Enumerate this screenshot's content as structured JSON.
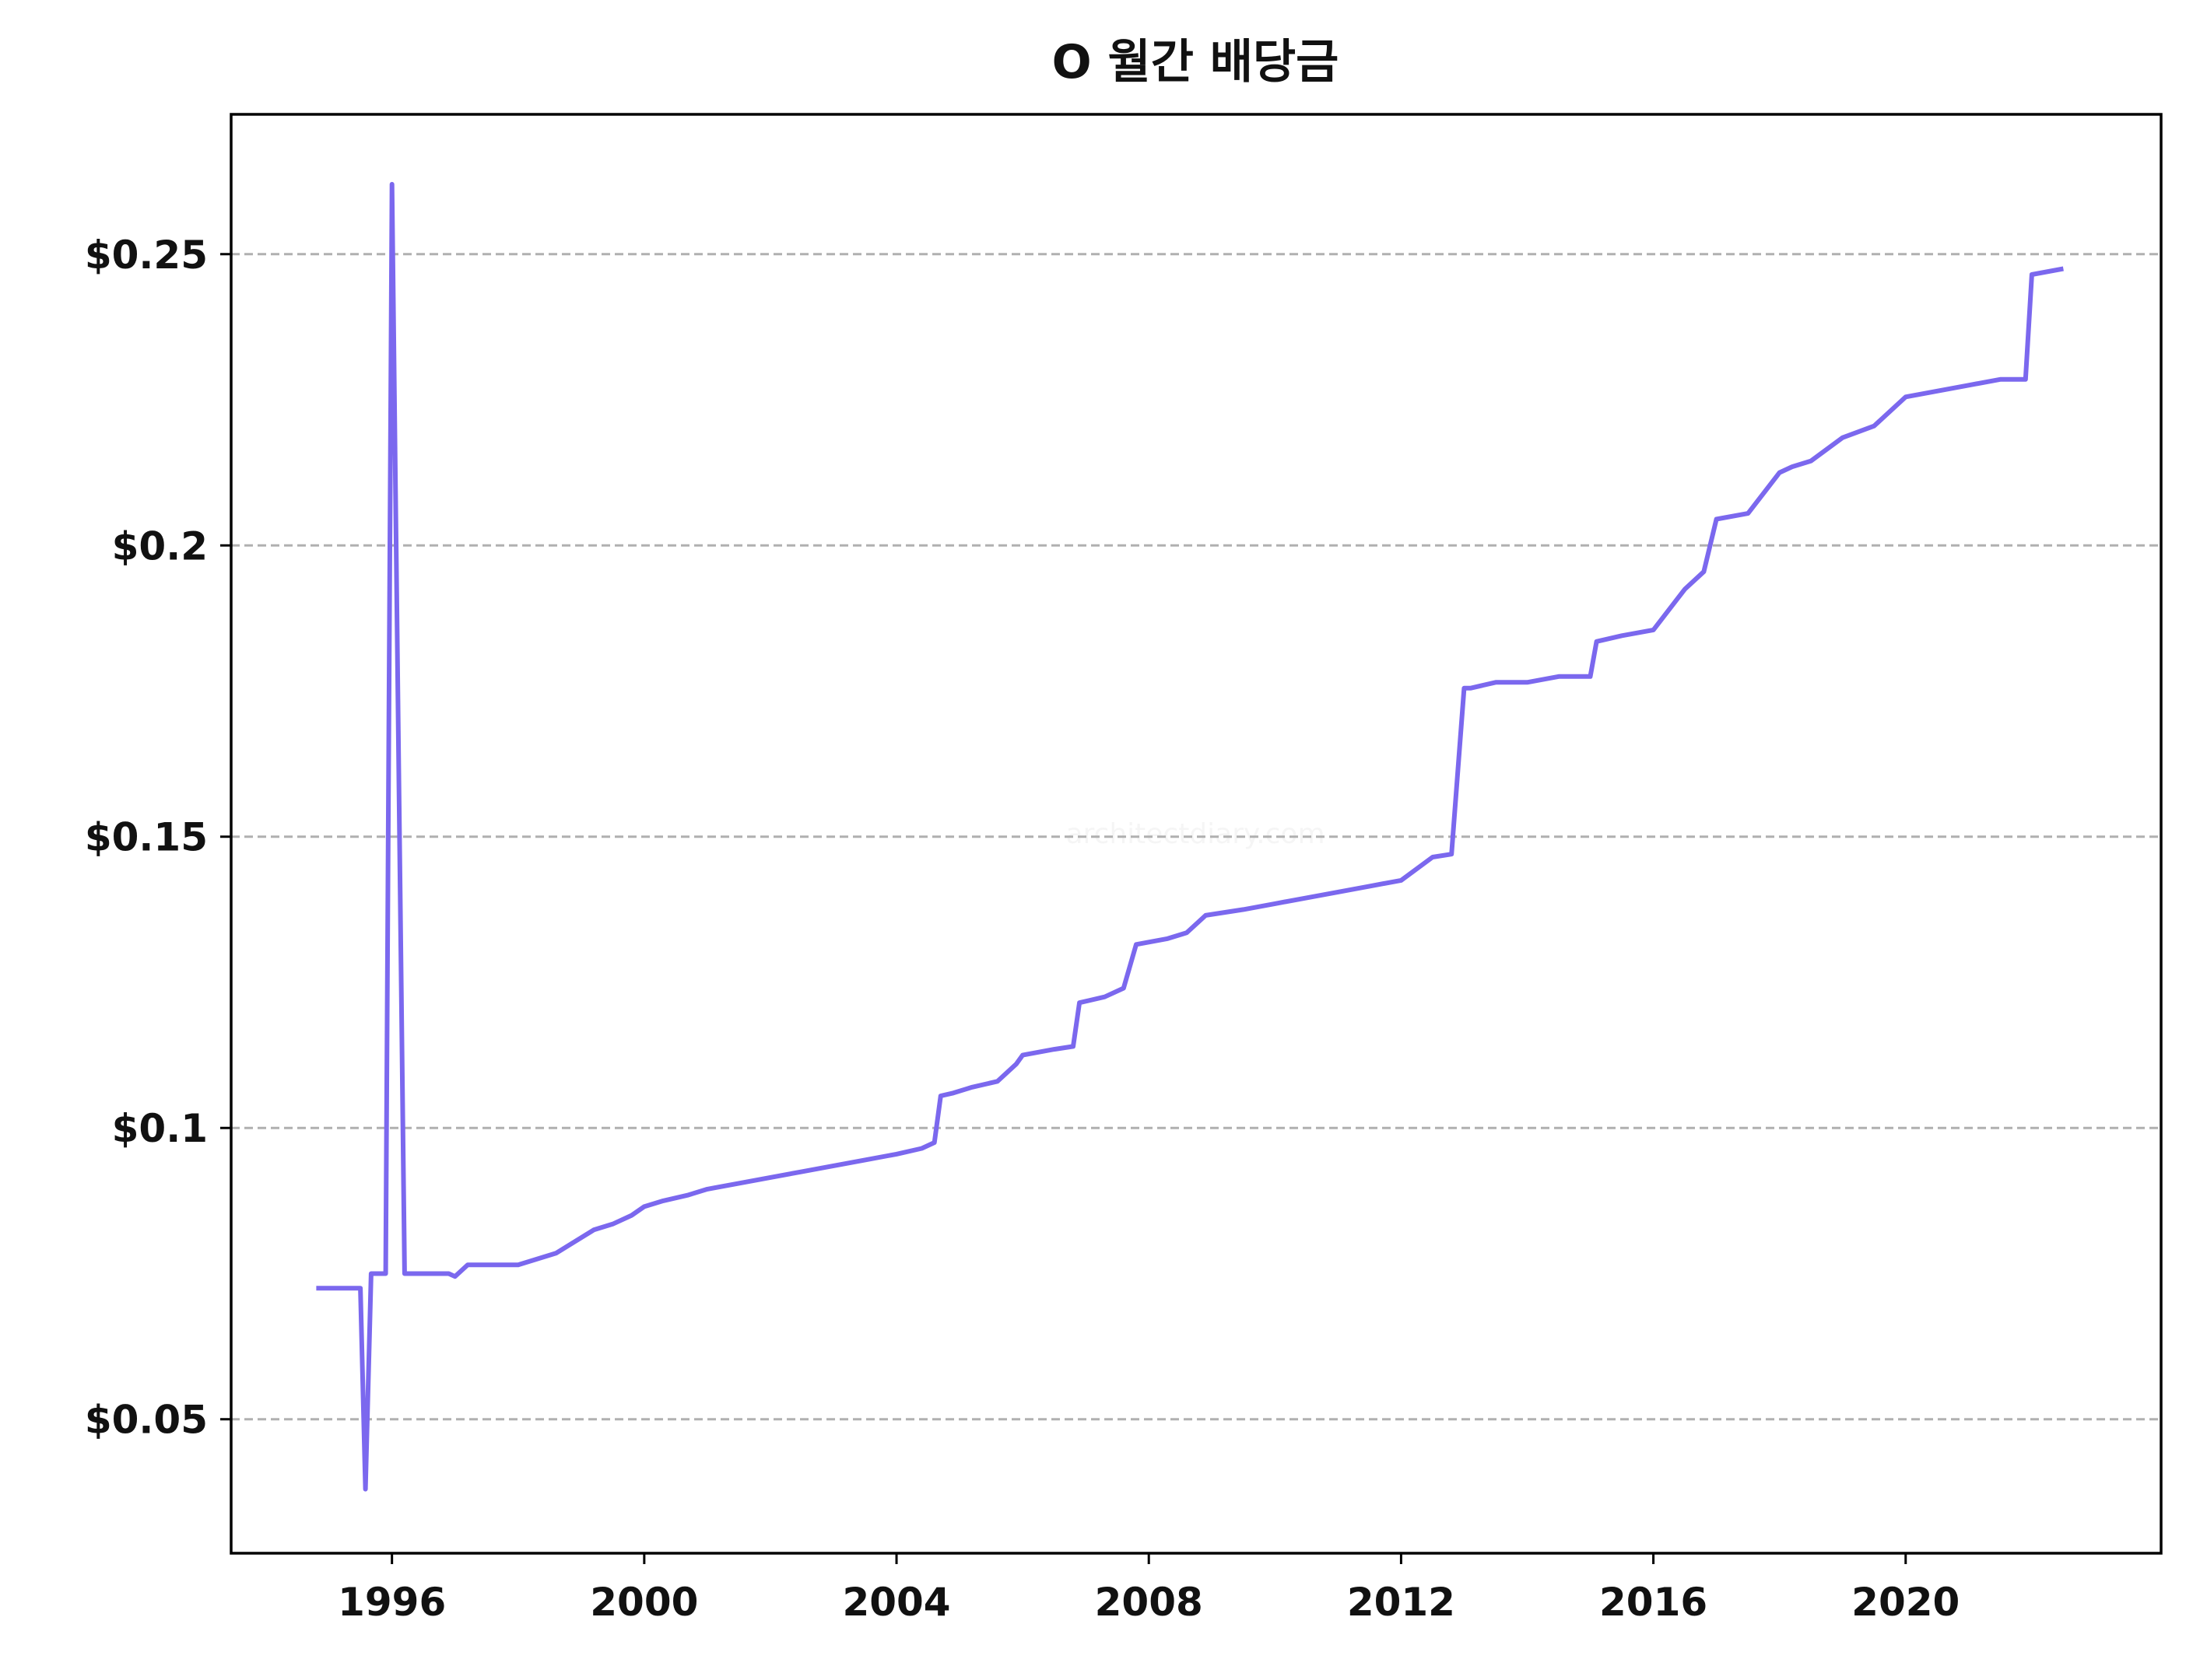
{
  "chart_data": {
    "type": "line",
    "title": "O 월간 배당금",
    "xlabel": "",
    "ylabel": "",
    "x_ticks": [
      1996,
      2000,
      2004,
      2008,
      2012,
      2016,
      2020
    ],
    "x_tick_labels": [
      "1996",
      "2000",
      "2004",
      "2008",
      "2012",
      "2016",
      "2020"
    ],
    "xlim": [
      1993.45,
      2024.05
    ],
    "y_ticks": [
      0.05,
      0.1,
      0.15,
      0.2,
      0.25
    ],
    "y_tick_labels": [
      "$0.05",
      "$0.1",
      "$0.15",
      "$0.2",
      "$0.25"
    ],
    "ylim": [
      0.027,
      0.274
    ],
    "grid": "y-dashed",
    "legend": "none",
    "watermark": "architectdiary.com",
    "colors": {
      "line": "#7b68ee",
      "grid": "#b0b0b0",
      "axes": "#000000"
    },
    "series": [
      {
        "x": [
          1994.8,
          1995.5,
          1995.58,
          1995.67,
          1995.9,
          1996.0,
          1996.2,
          1996.9,
          1997.0,
          1997.2,
          1998.0,
          1998.3,
          1998.6,
          1998.9,
          1999.2,
          1999.5,
          1999.8,
          2000.0,
          2000.3,
          2000.7,
          2001.0,
          2001.5,
          2002.0,
          2002.5,
          2003.0,
          2003.5,
          2004.0,
          2004.4,
          2004.6,
          2004.7,
          2004.9,
          2005.2,
          2005.6,
          2005.9,
          2006.0,
          2006.5,
          2006.8,
          2006.9,
          2007.3,
          2007.6,
          2007.8,
          2008.3,
          2008.6,
          2008.9,
          2009.5,
          2010.0,
          2010.5,
          2011.0,
          2011.5,
          2012.0,
          2012.5,
          2012.8,
          2013.0,
          2013.1,
          2013.5,
          2014.0,
          2014.5,
          2015.0,
          2015.1,
          2015.5,
          2016.0,
          2016.5,
          2016.8,
          2017.0,
          2017.5,
          2018.0,
          2018.2,
          2018.5,
          2019.0,
          2019.5,
          2020.0,
          2020.5,
          2021.0,
          2021.5,
          2021.9,
          2022.0,
          2022.5
        ],
        "y": [
          0.0725,
          0.0725,
          0.038,
          0.075,
          0.075,
          0.262,
          0.075,
          0.075,
          0.0745,
          0.0765,
          0.0765,
          0.0775,
          0.0785,
          0.0805,
          0.0825,
          0.0835,
          0.085,
          0.0865,
          0.0875,
          0.0885,
          0.0895,
          0.0905,
          0.0915,
          0.0925,
          0.0935,
          0.0945,
          0.0955,
          0.0965,
          0.0975,
          0.1055,
          0.106,
          0.107,
          0.108,
          0.111,
          0.1125,
          0.1135,
          0.114,
          0.1215,
          0.1225,
          0.124,
          0.1315,
          0.1325,
          0.1335,
          0.1365,
          0.1375,
          0.1385,
          0.1395,
          0.1405,
          0.1415,
          0.1425,
          0.1465,
          0.147,
          0.1755,
          0.1755,
          0.1765,
          0.1765,
          0.1775,
          0.1775,
          0.1835,
          0.1845,
          0.1855,
          0.1925,
          0.1955,
          0.2045,
          0.2055,
          0.2125,
          0.2135,
          0.2145,
          0.2185,
          0.2205,
          0.2255,
          0.2265,
          0.2275,
          0.2285,
          0.2285,
          0.2465,
          0.2475
        ]
      }
    ]
  }
}
